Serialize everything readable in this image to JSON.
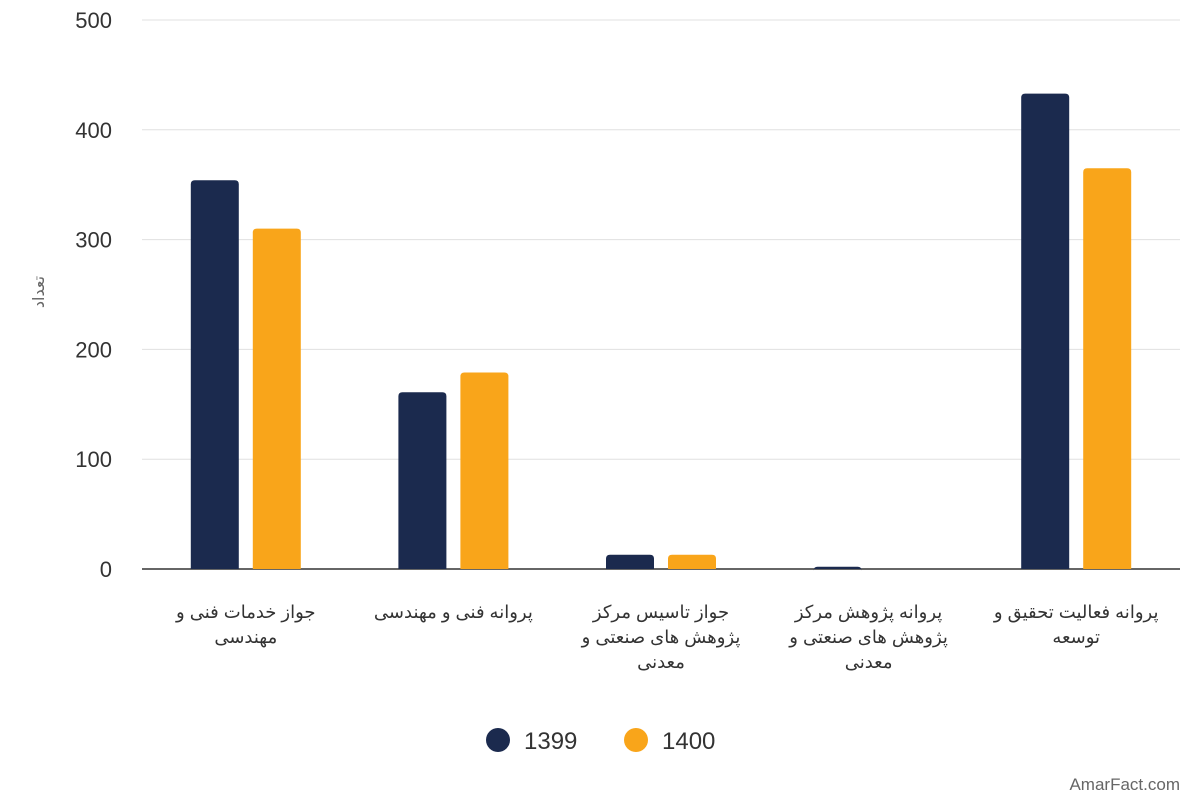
{
  "chart_data": {
    "type": "bar",
    "title": "",
    "xlabel": "",
    "ylabel": "تعداد",
    "ylim": [
      0,
      500
    ],
    "yticks": [
      0,
      100,
      200,
      300,
      400,
      500
    ],
    "grid": true,
    "legend_position": "bottom",
    "categories": [
      [
        "جواز خدمات فنی و",
        "مهندسی"
      ],
      [
        "پروانه فنی و مهندسی"
      ],
      [
        "جواز تاسیس مرکز",
        "پژوهش های صنعتی و",
        "معدنی"
      ],
      [
        "پروانه پژوهش مرکز",
        "پژوهش های صنعتی و",
        "معدنی"
      ],
      [
        "پروانه فعالیت تحقیق و",
        "توسعه"
      ]
    ],
    "series": [
      {
        "name": "1399",
        "color": "#1b2a4e",
        "values": [
          354,
          161,
          13,
          2,
          433
        ]
      },
      {
        "name": "1400",
        "color": "#f9a51a",
        "values": [
          310,
          179,
          13,
          0,
          365
        ]
      }
    ]
  },
  "watermark": "AmarFact.com"
}
